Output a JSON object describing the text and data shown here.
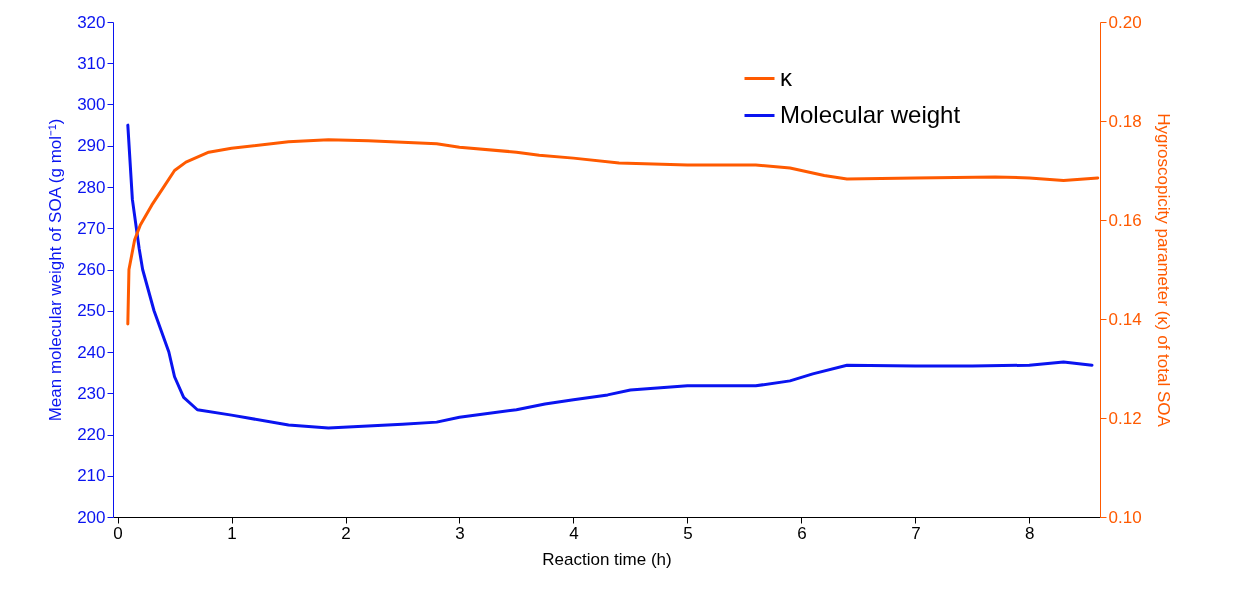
{
  "chart_data": {
    "type": "line",
    "xlabel": "Reaction time (h)",
    "ylabel": "Mean molecular weight of SOA (g mol⁻¹)",
    "y2label": "Hygroscopicity parameter (κ) of total SOA",
    "xlim": [
      -0.04,
      8.62
    ],
    "xticks": [
      0,
      1,
      2,
      3,
      4,
      5,
      6,
      7,
      8
    ],
    "ylim": [
      200,
      320
    ],
    "yticks": [
      200,
      210,
      220,
      230,
      240,
      250,
      260,
      270,
      280,
      290,
      300,
      310,
      320
    ],
    "y2lim": [
      0.1,
      0.2
    ],
    "y2ticks": [
      {
        "value": 0.1,
        "label": "0.10"
      },
      {
        "value": 0.12,
        "label": "0.12"
      },
      {
        "value": 0.14,
        "label": "0.14"
      },
      {
        "value": 0.16,
        "label": "0.16"
      },
      {
        "value": 0.18,
        "label": "0.18"
      },
      {
        "value": 0.2,
        "label": "0.20"
      }
    ],
    "grid": false,
    "legend": "top right",
    "marker": "none",
    "line_style": "solid",
    "series": [
      {
        "name": "κ",
        "color": "#ff5a00",
        "axis": "y2",
        "x": [
          0.09,
          0.1,
          0.15,
          0.2,
          0.3,
          0.4,
          0.5,
          0.6,
          0.8,
          1.0,
          1.5,
          1.85,
          2.2,
          2.8,
          3.0,
          3.5,
          3.7,
          4.0,
          4.4,
          5.0,
          5.6,
          5.9,
          6.2,
          6.4,
          7.0,
          7.7,
          8.0,
          8.3,
          8.6
        ],
        "values": [
          0.139,
          0.15,
          0.156,
          0.159,
          0.163,
          0.1665,
          0.17,
          0.1717,
          0.1737,
          0.1745,
          0.1758,
          0.1762,
          0.176,
          0.1754,
          0.1747,
          0.1737,
          0.1731,
          0.1725,
          0.1715,
          0.1711,
          0.1711,
          0.1705,
          0.169,
          0.1683,
          0.1685,
          0.1687,
          0.1685,
          0.168,
          0.1685
        ]
      },
      {
        "name": "Molecular weight",
        "color": "#0a14f0",
        "axis": "y",
        "x": [
          0.09,
          0.13,
          0.19,
          0.22,
          0.32,
          0.45,
          0.5,
          0.58,
          0.7,
          1.0,
          1.5,
          1.85,
          2.5,
          2.8,
          3.0,
          3.5,
          3.75,
          4.0,
          4.3,
          4.5,
          5.0,
          5.6,
          5.9,
          6.1,
          6.4,
          7.0,
          7.5,
          8.0,
          8.3,
          8.55
        ],
        "values": [
          295,
          277,
          265,
          260,
          250,
          240,
          234,
          229,
          226,
          224.7,
          222.3,
          221.6,
          222.5,
          223,
          224.2,
          226,
          227.4,
          228.4,
          229.6,
          230.8,
          231.8,
          231.8,
          233,
          234.7,
          236.8,
          236.6,
          236.6,
          236.8,
          237.6,
          236.8
        ]
      }
    ]
  }
}
